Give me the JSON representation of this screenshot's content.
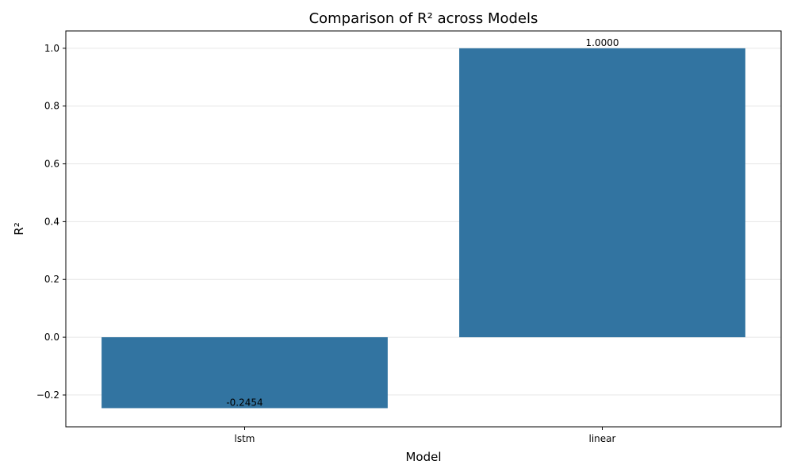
{
  "chart_data": {
    "type": "bar",
    "title": "Comparison of R² across Models",
    "xlabel": "Model",
    "ylabel": "R²",
    "categories": [
      "lstm",
      "linear"
    ],
    "values": [
      -0.2454,
      1.0
    ],
    "data_labels": [
      "-0.2454",
      "1.0000"
    ],
    "ylim": [
      -0.31,
      1.06
    ],
    "yticks": [
      -0.2,
      0.0,
      0.2,
      0.4,
      0.6,
      0.8,
      1.0
    ],
    "ytick_labels": [
      "−0.2",
      "0.0",
      "0.2",
      "0.4",
      "0.6",
      "0.8",
      "1.0"
    ],
    "grid": true,
    "bar_color": "#3274a1"
  }
}
